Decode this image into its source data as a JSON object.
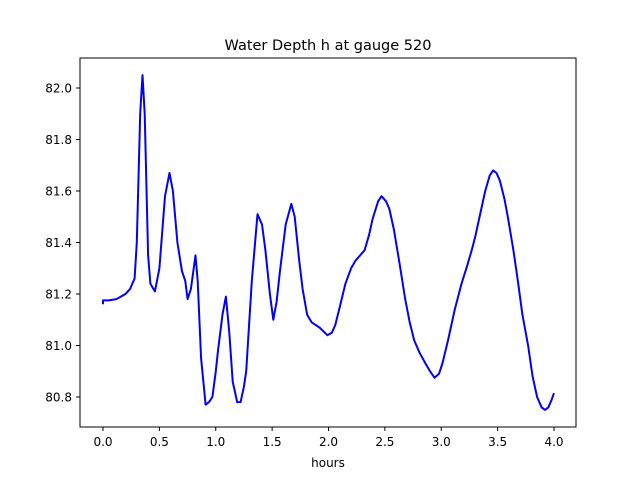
{
  "chart_data": {
    "type": "line",
    "title": "Water Depth h at gauge 520",
    "xlabel": "hours",
    "ylabel": "",
    "xlim": [
      -0.2,
      4.2
    ],
    "ylim": [
      80.69,
      82.13
    ],
    "xticks": [
      "0.0",
      "0.5",
      "1.0",
      "1.5",
      "2.0",
      "2.5",
      "3.0",
      "3.5",
      "4.0"
    ],
    "yticks": [
      "80.8",
      "81.0",
      "81.2",
      "81.4",
      "81.6",
      "81.8",
      "82.0"
    ],
    "grid": false,
    "color": "#0000ff",
    "series": [
      {
        "name": "h",
        "x": [
          0.0,
          0.0,
          0.05,
          0.12,
          0.2,
          0.24,
          0.28,
          0.3,
          0.33,
          0.35,
          0.37,
          0.4,
          0.42,
          0.46,
          0.5,
          0.55,
          0.59,
          0.62,
          0.66,
          0.7,
          0.73,
          0.75,
          0.78,
          0.82,
          0.84,
          0.87,
          0.91,
          0.94,
          0.97,
          1.0,
          1.02,
          1.06,
          1.09,
          1.12,
          1.15,
          1.19,
          1.22,
          1.25,
          1.27,
          1.32,
          1.37,
          1.41,
          1.44,
          1.48,
          1.51,
          1.54,
          1.57,
          1.62,
          1.67,
          1.7,
          1.74,
          1.77,
          1.81,
          1.85,
          1.92,
          1.99,
          2.03,
          2.06,
          2.1,
          2.15,
          2.2,
          2.24,
          2.28,
          2.32,
          2.36,
          2.39,
          2.44,
          2.47,
          2.51,
          2.54,
          2.58,
          2.63,
          2.68,
          2.72,
          2.76,
          2.81,
          2.86,
          2.9,
          2.94,
          2.98,
          3.01,
          3.06,
          3.12,
          3.18,
          3.23,
          3.27,
          3.3,
          3.35,
          3.39,
          3.43,
          3.46,
          3.49,
          3.52,
          3.56,
          3.59,
          3.64,
          3.68,
          3.72,
          3.77,
          3.81,
          3.85,
          3.89,
          3.92,
          3.95,
          3.98,
          4.0
        ],
        "y": [
          81.16,
          81.175,
          81.175,
          81.18,
          81.2,
          81.22,
          81.26,
          81.4,
          81.9,
          82.05,
          81.9,
          81.35,
          81.24,
          81.21,
          81.3,
          81.58,
          81.67,
          81.6,
          81.4,
          81.29,
          81.25,
          81.18,
          81.22,
          81.35,
          81.25,
          80.95,
          80.77,
          80.78,
          80.8,
          80.9,
          80.98,
          81.12,
          81.19,
          81.05,
          80.86,
          80.78,
          80.78,
          80.84,
          80.9,
          81.25,
          81.51,
          81.47,
          81.37,
          81.2,
          81.1,
          81.17,
          81.29,
          81.47,
          81.55,
          81.5,
          81.33,
          81.22,
          81.12,
          81.09,
          81.07,
          81.04,
          81.05,
          81.08,
          81.15,
          81.24,
          81.3,
          81.33,
          81.35,
          81.37,
          81.43,
          81.49,
          81.56,
          81.58,
          81.56,
          81.53,
          81.45,
          81.32,
          81.18,
          81.09,
          81.02,
          80.97,
          80.93,
          80.9,
          80.875,
          80.89,
          80.93,
          81.02,
          81.14,
          81.24,
          81.31,
          81.37,
          81.42,
          81.52,
          81.6,
          81.66,
          81.68,
          81.67,
          81.64,
          81.57,
          81.5,
          81.37,
          81.25,
          81.12,
          81.0,
          80.88,
          80.8,
          80.76,
          80.75,
          80.76,
          80.79,
          80.815
        ]
      }
    ]
  }
}
